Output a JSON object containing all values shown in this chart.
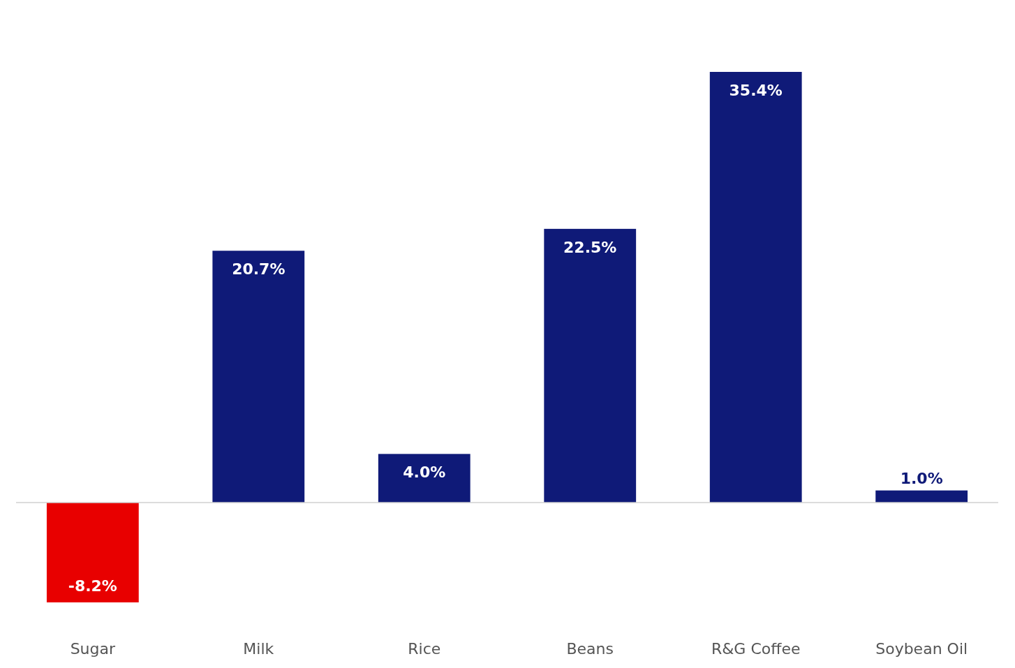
{
  "chart_data": {
    "type": "bar",
    "categories": [
      "Sugar",
      "Milk",
      "Rice",
      "Beans",
      "R&G Coffee",
      "Soybean Oil"
    ],
    "values": [
      -8.2,
      20.7,
      4.0,
      22.5,
      35.4,
      1.0
    ],
    "value_labels": [
      "-8.2%",
      "20.7%",
      "4.0%",
      "22.5%",
      "35.4%",
      "1.0%"
    ],
    "colors": [
      "#e80000",
      "#0f1a78",
      "#0f1a78",
      "#0f1a78",
      "#0f1a78",
      "#0f1a78"
    ]
  }
}
